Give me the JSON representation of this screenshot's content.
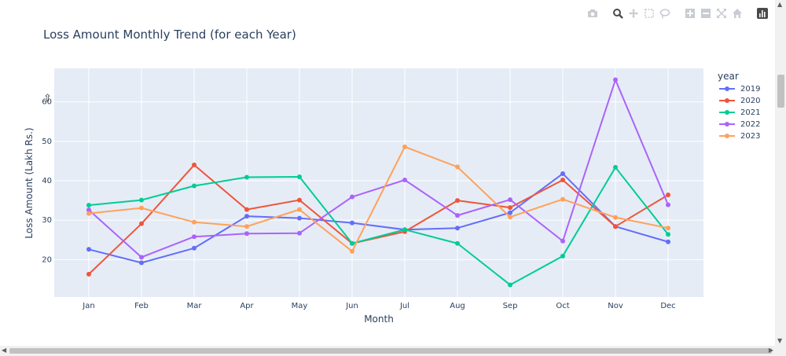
{
  "modebar": {
    "icons": [
      "camera-icon",
      "zoom-icon",
      "pan-icon",
      "box-select-icon",
      "lasso-select-icon",
      "zoom-in-icon",
      "zoom-out-icon",
      "autoscale-icon",
      "reset-axes-icon",
      "plotly-logo-icon"
    ]
  },
  "chart_data": {
    "type": "line",
    "title": "Loss Amount Monthly Trend (for each Year)",
    "xlabel": "Month",
    "ylabel": "Loss Amount (Lakh Rs.)",
    "legend_title": "year",
    "legend_position": "right",
    "grid": true,
    "categories": [
      "Jan",
      "Feb",
      "Mar",
      "Apr",
      "May",
      "Jun",
      "Jul",
      "Aug",
      "Sep",
      "Oct",
      "Nov",
      "Dec"
    ],
    "yticks": [
      20,
      30,
      40,
      50,
      60
    ],
    "ylim": [
      10.5,
      68.5
    ],
    "series": [
      {
        "name": "2019",
        "color": "#636efa",
        "values": [
          22.6,
          19.2,
          22.9,
          31.0,
          30.5,
          29.3,
          27.6,
          28.0,
          31.9,
          41.8,
          28.4,
          24.5
        ]
      },
      {
        "name": "2020",
        "color": "#ef553b",
        "values": [
          16.3,
          29.1,
          44.0,
          32.7,
          35.1,
          24.1,
          27.1,
          35.0,
          33.2,
          40.2,
          28.4,
          36.4
        ]
      },
      {
        "name": "2021",
        "color": "#00cc96",
        "values": [
          33.8,
          35.1,
          38.7,
          40.9,
          41.0,
          24.1,
          27.6,
          24.1,
          13.6,
          20.9,
          43.4,
          26.4
        ]
      },
      {
        "name": "2022",
        "color": "#ab63fa",
        "values": [
          32.6,
          20.6,
          25.8,
          26.6,
          26.7,
          35.9,
          40.2,
          31.2,
          35.2,
          24.7,
          65.6,
          33.9
        ]
      },
      {
        "name": "2023",
        "color": "#ffa15a",
        "values": [
          31.7,
          33.1,
          29.5,
          28.4,
          32.7,
          22.1,
          48.6,
          43.5,
          30.8,
          35.3,
          30.7,
          28.0
        ]
      }
    ]
  }
}
